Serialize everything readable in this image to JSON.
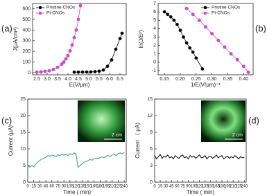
{
  "chart_data": [
    {
      "type": "line",
      "panel_label": "(a)",
      "xlabel": "E(V/μm)",
      "ylabel": "J(μA/cm²)",
      "xlim": [
        2.3,
        6.8
      ],
      "ylim": [
        -20,
        650
      ],
      "xticks": [
        2.5,
        {
          "value": 3,
          "label": "3.0"
        },
        3.5,
        {
          "value": 4,
          "label": "4.0"
        },
        4.5,
        {
          "value": 5,
          "label": "5.0"
        },
        5.5,
        {
          "value": 6,
          "label": "6.0"
        },
        6.5
      ],
      "yticks": [
        0,
        100,
        200,
        300,
        400,
        500,
        600
      ],
      "legend": "upper left",
      "marker": "circle",
      "series": [
        {
          "name": "Pristine CNOs",
          "color": "#000000",
          "x": [
            4.3,
            4.5,
            4.7,
            4.9,
            5.1,
            5.3,
            5.5,
            5.7,
            5.9,
            6.1,
            6.3,
            6.5,
            6.6
          ],
          "values": [
            5,
            5,
            6,
            6,
            7,
            9,
            14,
            25,
            60,
            120,
            220,
            320,
            370
          ]
        },
        {
          "name": "Pt-CNOs",
          "color": "#e040e0",
          "x": [
            2.5,
            2.7,
            2.9,
            3.1,
            3.3,
            3.5,
            3.7,
            3.8,
            3.9,
            4.0,
            4.1,
            4.2,
            4.3,
            4.4,
            4.5,
            4.6
          ],
          "values": [
            5,
            7,
            12,
            18,
            30,
            50,
            80,
            100,
            130,
            160,
            205,
            260,
            330,
            400,
            500,
            630
          ]
        }
      ]
    },
    {
      "type": "line",
      "panel_label": "(b)",
      "xlabel": "1/E(V/μm)⁻¹",
      "ylabel": "ln(J/E²)",
      "xlim": [
        0.13,
        0.43
      ],
      "ylim": [
        -1.5,
        7
      ],
      "xticks": [
        0.15,
        {
          "value": 0.2,
          "label": "0.20"
        },
        0.25,
        {
          "value": 0.3,
          "label": "0.30"
        },
        0.35,
        {
          "value": 0.4,
          "label": "0.40"
        }
      ],
      "yticks": [
        -1,
        0,
        1,
        2,
        3,
        4,
        5,
        6,
        7
      ],
      "legend": "upper right",
      "marker": "circle",
      "series": [
        {
          "name": "Pristine CNOs",
          "color": "#000000",
          "x": [
            0.15,
            0.16,
            0.17,
            0.18,
            0.19,
            0.2,
            0.21,
            0.22,
            0.23,
            0.24,
            0.25,
            0.27
          ],
          "values": [
            6.0,
            5.7,
            5.4,
            5.0,
            4.5,
            3.8,
            3.0,
            2.3,
            1.7,
            1.2,
            0.5,
            -0.8
          ]
        },
        {
          "name": "Pt-CNOs",
          "color": "#e040e0",
          "x": [
            0.22,
            0.24,
            0.26,
            0.28,
            0.3,
            0.32,
            0.34,
            0.36,
            0.38,
            0.4,
            0.415
          ],
          "values": [
            6.4,
            5.7,
            5.0,
            4.2,
            3.4,
            2.6,
            1.8,
            1.0,
            0.3,
            -0.5,
            -1.2
          ]
        }
      ]
    },
    {
      "type": "line",
      "panel_label": "(c)",
      "xlabel": "Time ( min)",
      "ylabel": "Current (μA)",
      "inset_label": "2 cm",
      "xlim": [
        0,
        245
      ],
      "ylim": [
        0,
        25
      ],
      "xticks": [
        0,
        15,
        30,
        45,
        60,
        75,
        90,
        105,
        120,
        135,
        150,
        165,
        180,
        195,
        210,
        225,
        240
      ],
      "yticks": [
        0,
        5,
        10,
        15,
        20,
        25
      ],
      "series": [
        {
          "color": "#2e9e78",
          "x": [
            0,
            5,
            10,
            15,
            20,
            25,
            30,
            35,
            40,
            45,
            50,
            55,
            60,
            65,
            70,
            75,
            80,
            85,
            90,
            95,
            100,
            105,
            110,
            115,
            120,
            125,
            130,
            135,
            140,
            145,
            150,
            155,
            160,
            165,
            170,
            175,
            180,
            185,
            190,
            195,
            200,
            205,
            210,
            215,
            220,
            225,
            230,
            235,
            240
          ],
          "values": [
            5,
            4.5,
            5,
            4.6,
            5.5,
            6,
            6.5,
            7,
            7.2,
            7.5,
            8,
            7.8,
            8.2,
            8,
            7.6,
            8.3,
            7.9,
            8.5,
            8.1,
            8.4,
            8,
            8.6,
            8.2,
            8.8,
            8.5,
            4.5,
            5,
            5.5,
            6,
            6.2,
            6.5,
            6.8,
            6.6,
            7,
            7.2,
            7,
            7.4,
            7.6,
            7.3,
            7.8,
            8,
            7.7,
            8.2,
            8.4,
            8,
            8.6,
            8.8,
            8.5,
            9
          ]
        }
      ]
    },
    {
      "type": "line",
      "panel_label": "(d)",
      "xlabel": "Time ( min)",
      "ylabel": "Current （ μA)",
      "inset_label": "2 cm",
      "xlim": [
        0,
        245
      ],
      "ylim": [
        0,
        15
      ],
      "xticks": [
        0,
        15,
        30,
        45,
        60,
        75,
        90,
        105,
        120,
        135,
        150,
        165,
        180,
        195,
        210,
        225,
        240
      ],
      "yticks": [
        0,
        3,
        6,
        9,
        12,
        15
      ],
      "series": [
        {
          "color": "#000000",
          "x": [
            0,
            5,
            10,
            15,
            20,
            25,
            30,
            35,
            40,
            45,
            50,
            55,
            60,
            65,
            70,
            75,
            80,
            85,
            90,
            95,
            100,
            105,
            110,
            115,
            120,
            125,
            130,
            135,
            140,
            145,
            150,
            155,
            160,
            165,
            170,
            175,
            180,
            185,
            190,
            195,
            200,
            205,
            210,
            215,
            220,
            225,
            230,
            235,
            240
          ],
          "values": [
            4.8,
            4.2,
            4.6,
            5,
            4.3,
            4.7,
            4.5,
            4.9,
            4.4,
            4.6,
            4.2,
            4.8,
            4.5,
            4.3,
            4.7,
            4.9,
            4.4,
            4.6,
            4.2,
            4.8,
            4.5,
            4.7,
            4.3,
            4.6,
            4.9,
            4.4,
            4.5,
            4.8,
            4.2,
            4.6,
            4.7,
            4.3,
            4.5,
            4.9,
            4.4,
            4.6,
            4.8,
            4.2,
            4.5,
            4.7,
            4.3,
            4.6,
            4.4,
            4.8,
            4.5,
            4.2,
            4.6,
            4.4,
            4.5
          ]
        }
      ]
    }
  ]
}
